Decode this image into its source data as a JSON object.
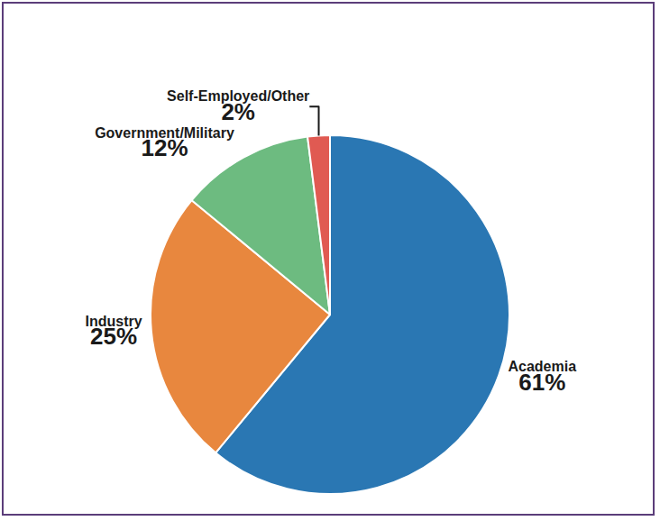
{
  "chart_data": {
    "type": "pie",
    "categories": [
      "Academia",
      "Industry",
      "Government/Military",
      "Self-Employed/Other"
    ],
    "values": [
      61,
      25,
      12,
      2
    ],
    "value_labels": [
      "61%",
      "25%",
      "12%",
      "2%"
    ],
    "colors": [
      "#2a77b3",
      "#e8873e",
      "#6dbb80",
      "#e05a52"
    ],
    "data_labels": true
  }
}
